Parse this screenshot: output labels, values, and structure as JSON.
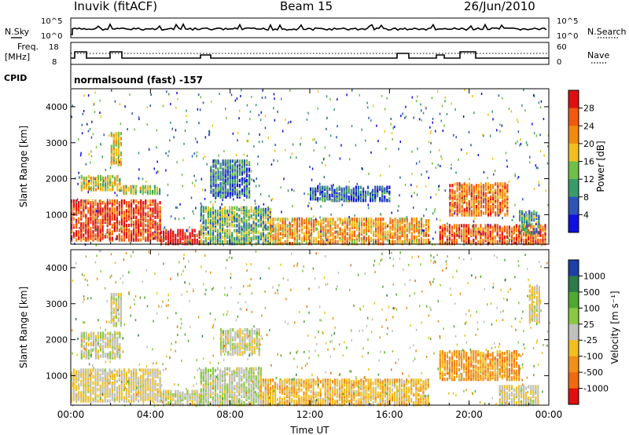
{
  "header": {
    "station": "Inuvik (fitACF)",
    "beam": "Beam 15",
    "date": "26/Jun/2010"
  },
  "status_panels": {
    "nsky_label": "N.Sky",
    "nsky_ticks": [
      "10^5",
      "10^0"
    ],
    "nsearch_label": "N.Search",
    "nsearch_ticks": [
      "10^5",
      "10^0"
    ],
    "freq_label": "Freq.",
    "freq_unit": "[MHz]",
    "freq_ticks": [
      "18",
      "8"
    ],
    "nave_label": "Nave",
    "nave_ticks": [
      "60",
      "0"
    ],
    "cpid_label": "CPID",
    "cpid_value": "normalsound (fast) -157"
  },
  "colors": {
    "power_scale": [
      "#1010e0",
      "#2f54b8",
      "#3a9a6a",
      "#6fbf4a",
      "#f0c020",
      "#f08a10",
      "#f05a10",
      "#e01010"
    ],
    "velocity_scale": [
      "#1c3fa8",
      "#2e7a4a",
      "#4fa832",
      "#8ac842",
      "#c0c0bc",
      "#f0c020",
      "#f09018",
      "#f06a10",
      "#e01010"
    ]
  },
  "chart_data": [
    {
      "type": "heatmap",
      "title": "",
      "ylabel": "Slant Range [km]",
      "xlabel": "",
      "x_ticks": [
        "00:00",
        "04:00",
        "08:00",
        "12:00",
        "16:00",
        "20:00",
        "00:00"
      ],
      "y_ticks": [
        1000,
        2000,
        3000,
        4000
      ],
      "ylim": [
        180,
        4500
      ],
      "xlim_hours": [
        0,
        24
      ],
      "colorbar": {
        "label": "Power [dB]",
        "ticks": [
          "4",
          "8",
          "12",
          "16",
          "20",
          "24",
          "28"
        ],
        "range": [
          0,
          30
        ]
      },
      "regions": [
        {
          "t": [
            0,
            4.5
          ],
          "r": [
            300,
            1400
          ],
          "level": 26
        },
        {
          "t": [
            0.5,
            2.5
          ],
          "r": [
            1700,
            2100
          ],
          "level": 16
        },
        {
          "t": [
            2,
            2.5
          ],
          "r": [
            2400,
            3300
          ],
          "level": 16
        },
        {
          "t": [
            2.5,
            4.5
          ],
          "r": [
            1600,
            1800
          ],
          "level": 14
        },
        {
          "t": [
            4.5,
            6.5
          ],
          "r": [
            200,
            600
          ],
          "level": 30
        },
        {
          "t": [
            6.5,
            10
          ],
          "r": [
            200,
            1200
          ],
          "level": 12
        },
        {
          "t": [
            7,
            9
          ],
          "r": [
            1500,
            2500
          ],
          "level": 8
        },
        {
          "t": [
            10,
            18
          ],
          "r": [
            200,
            900
          ],
          "level": 20
        },
        {
          "t": [
            12,
            16
          ],
          "r": [
            1400,
            1800
          ],
          "level": 6
        },
        {
          "t": [
            18.5,
            23.8
          ],
          "r": [
            200,
            700
          ],
          "level": 24
        },
        {
          "t": [
            19,
            22
          ],
          "r": [
            1000,
            1900
          ],
          "level": 22
        },
        {
          "t": [
            22.5,
            23.5
          ],
          "r": [
            500,
            1100
          ],
          "level": 10
        }
      ]
    },
    {
      "type": "heatmap",
      "title": "",
      "ylabel": "Slant Range [km]",
      "xlabel": "Time UT",
      "x_ticks": [
        "00:00",
        "04:00",
        "08:00",
        "12:00",
        "16:00",
        "20:00",
        "00:00"
      ],
      "y_ticks": [
        1000,
        2000,
        3000,
        4000
      ],
      "ylim": [
        180,
        4500
      ],
      "xlim_hours": [
        0,
        24
      ],
      "colorbar": {
        "label": "Velocity [m s⁻¹]",
        "ticks": [
          "1000",
          "500",
          "100",
          "25",
          "-25",
          "-100",
          "-500",
          "-1000"
        ],
        "range": [
          -1200,
          1200
        ]
      },
      "regions": [
        {
          "t": [
            0,
            4.5
          ],
          "r": [
            300,
            1200
          ],
          "level": -100
        },
        {
          "t": [
            0.5,
            2.5
          ],
          "r": [
            1500,
            2200
          ],
          "level": 0
        },
        {
          "t": [
            2,
            2.5
          ],
          "r": [
            2400,
            3300
          ],
          "level": 0
        },
        {
          "t": [
            4.5,
            6.5
          ],
          "r": [
            200,
            600
          ],
          "level": 0
        },
        {
          "t": [
            6.5,
            9.5
          ],
          "r": [
            200,
            1200
          ],
          "level": 60
        },
        {
          "t": [
            7.5,
            9.5
          ],
          "r": [
            1600,
            2300
          ],
          "level": 0
        },
        {
          "t": [
            9.5,
            18
          ],
          "r": [
            200,
            900
          ],
          "level": -300
        },
        {
          "t": [
            18.5,
            22.5
          ],
          "r": [
            900,
            1700
          ],
          "level": -500
        },
        {
          "t": [
            21.5,
            23.5
          ],
          "r": [
            200,
            700
          ],
          "level": -100
        },
        {
          "t": [
            23,
            23.5
          ],
          "r": [
            2500,
            3500
          ],
          "level": -100
        }
      ]
    }
  ]
}
